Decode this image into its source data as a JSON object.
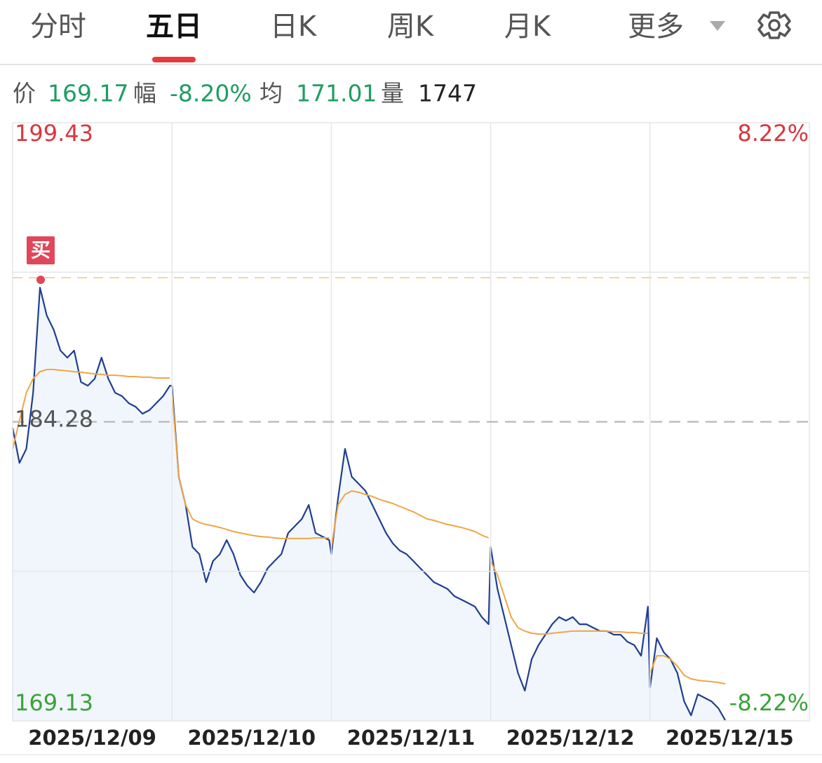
{
  "tabs": {
    "items": [
      "分时",
      "五日",
      "日K",
      "周K",
      "月K",
      "更多"
    ],
    "active": 1
  },
  "info": {
    "price_label": "价",
    "price": "169.17",
    "change_label": "幅",
    "change": "-8.20%",
    "avg_label": "均",
    "avg": "171.01",
    "volume_label": "量",
    "volume": "1747"
  },
  "chart_data": {
    "type": "line",
    "categories": [
      "2025/12/09",
      "2025/12/10",
      "2025/12/11",
      "2025/12/12",
      "2025/12/15"
    ],
    "ylim": [
      169.13,
      199.43
    ],
    "yticks": [
      {
        "value": 199.43,
        "label": "199.43"
      },
      {
        "value": 184.28,
        "label": "184.28"
      },
      {
        "value": 169.13,
        "label": "169.13"
      }
    ],
    "y2lim": [
      -8.22,
      8.22
    ],
    "y2ticks": [
      {
        "value": 8.22,
        "label": "8.22%"
      },
      {
        "value": -8.22,
        "label": "-8.22%"
      }
    ],
    "grid": true,
    "grid_lines": [
      191.86,
      176.71
    ],
    "buy_marker": {
      "label": "买",
      "value": 191.58
    },
    "series": [
      {
        "name": "价",
        "color": "#1f3f8f",
        "fill": "#f1f6fc",
        "connect": true,
        "values": [
          [
            183.98,
            182.2,
            182.91,
            185.75,
            191.08,
            189.66,
            188.95,
            187.89,
            187.53,
            187.89,
            186.29,
            186.11,
            186.46,
            187.53,
            186.46,
            185.75,
            185.58,
            185.22,
            185.04,
            184.69,
            184.87,
            185.22,
            185.58,
            186.11
          ],
          [
            186.11,
            181.49,
            180.07,
            177.94,
            177.58,
            176.16,
            177.23,
            177.58,
            178.29,
            177.58,
            176.52,
            175.99,
            175.63,
            176.16,
            176.87,
            177.23,
            177.58,
            178.65,
            179.01,
            179.36,
            180.07,
            178.65,
            178.47,
            178.29
          ],
          [
            177.58,
            180.43,
            182.91,
            181.49,
            181.14,
            180.78,
            180.07,
            179.36,
            178.65,
            178.12,
            177.76,
            177.58,
            177.23,
            176.87,
            176.52,
            176.16,
            175.99,
            175.81,
            175.45,
            175.28,
            175.1,
            174.92,
            174.39,
            174.03
          ],
          [
            177.94,
            175.81,
            174.39,
            172.97,
            171.55,
            170.66,
            172.26,
            172.97,
            173.5,
            174.03,
            174.39,
            174.21,
            174.39,
            174.03,
            174.03,
            173.85,
            173.68,
            173.68,
            173.5,
            173.5,
            173.14,
            172.97,
            172.43,
            174.92
          ],
          [
            170.83,
            173.32,
            172.61,
            172.26,
            171.55,
            170.12,
            169.41,
            170.48,
            170.3,
            170.12,
            169.77,
            169.17
          ]
        ]
      },
      {
        "name": "均",
        "color": "#efa646",
        "connect": false,
        "values": [
          [
            182.91,
            184.33,
            185.75,
            186.46,
            186.82,
            186.93,
            186.93,
            186.89,
            186.86,
            186.82,
            186.79,
            186.75,
            186.71,
            186.68,
            186.64,
            186.64,
            186.61,
            186.57,
            186.57,
            186.54,
            186.54,
            186.5,
            186.5,
            186.5
          ],
          [
            185.75,
            181.49,
            180.07,
            179.36,
            179.18,
            179.08,
            179.01,
            178.93,
            178.83,
            178.72,
            178.65,
            178.58,
            178.51,
            178.47,
            178.44,
            178.4,
            178.37,
            178.37,
            178.37,
            178.37,
            178.37,
            178.4,
            178.4,
            178.4
          ],
          [
            177.94,
            180.07,
            180.6,
            180.78,
            180.71,
            180.6,
            180.5,
            180.35,
            180.25,
            180.14,
            180.0,
            179.86,
            179.72,
            179.54,
            179.36,
            179.29,
            179.18,
            179.08,
            179.01,
            178.93,
            178.83,
            178.72,
            178.54,
            178.4
          ],
          [
            177.23,
            176.52,
            175.45,
            174.39,
            173.85,
            173.68,
            173.57,
            173.53,
            173.53,
            173.57,
            173.61,
            173.64,
            173.68,
            173.68,
            173.68,
            173.68,
            173.68,
            173.68,
            173.64,
            173.64,
            173.61,
            173.61,
            173.57,
            173.57
          ],
          [
            171.55,
            172.43,
            172.43,
            172.26,
            171.9,
            171.44,
            171.26,
            171.19,
            171.15,
            171.12,
            171.08,
            171.01
          ]
        ]
      }
    ]
  }
}
